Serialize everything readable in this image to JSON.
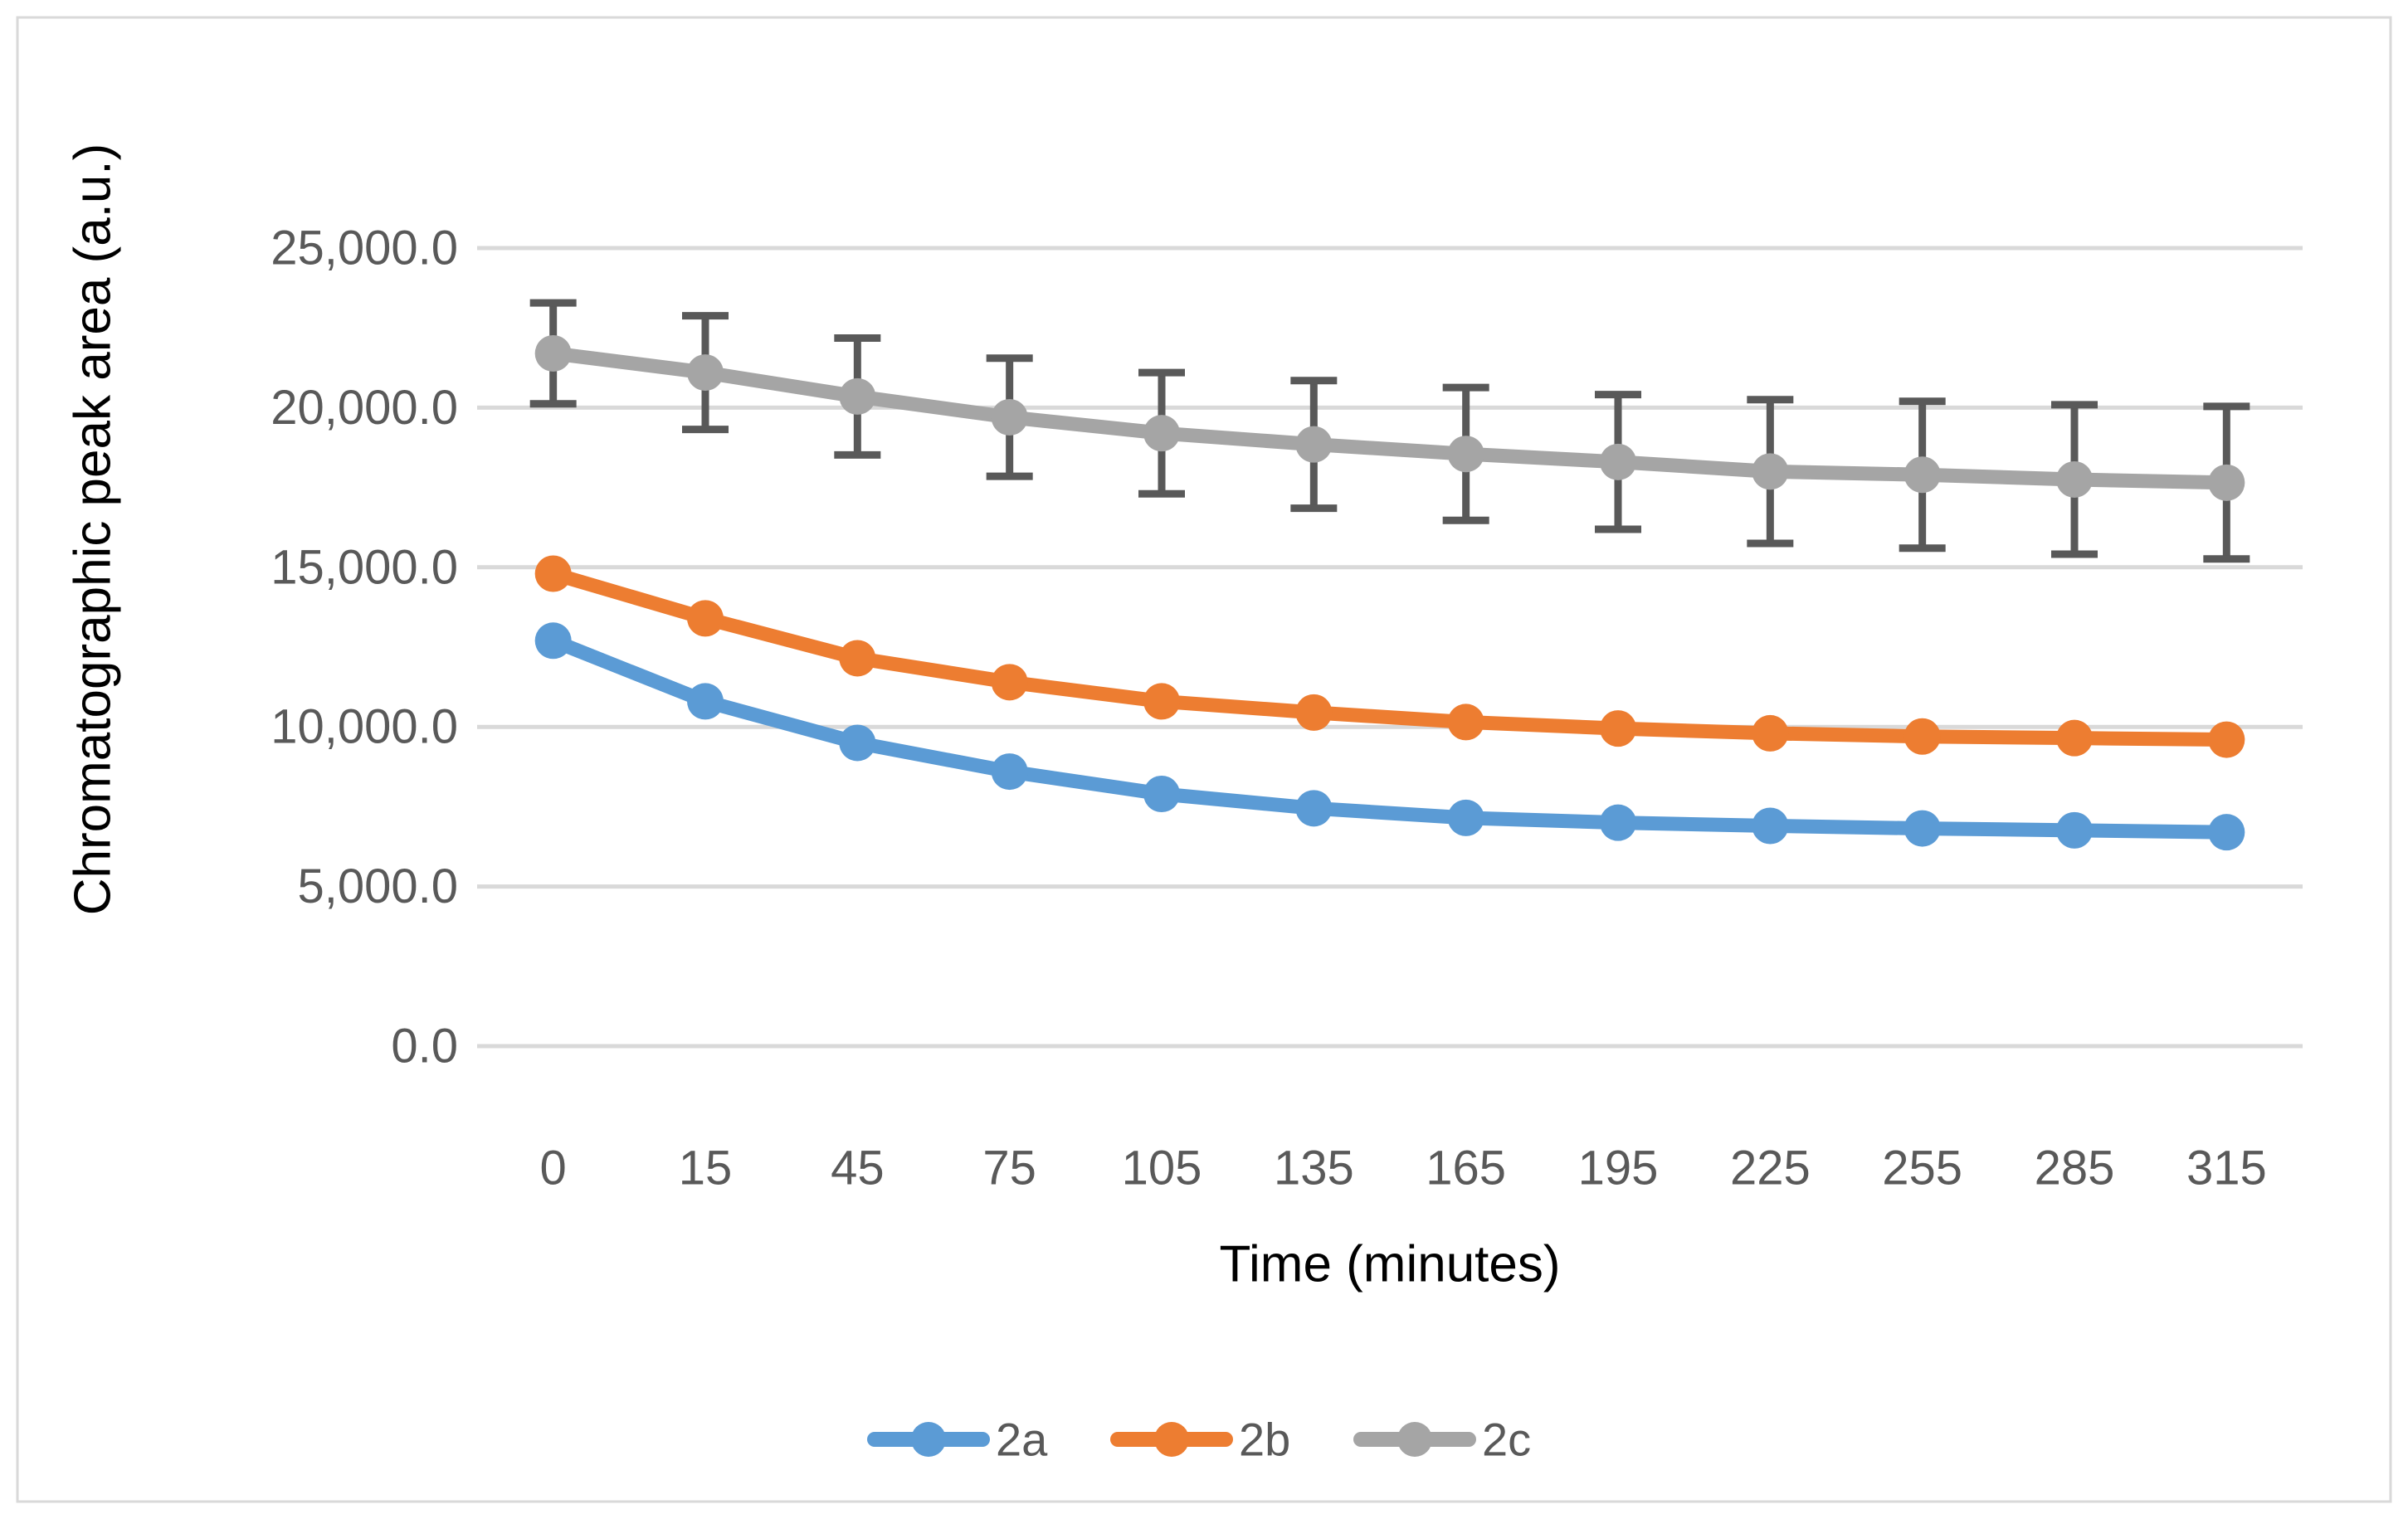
{
  "chart_data": {
    "type": "line",
    "title": "",
    "xlabel": "Time (minutes)",
    "ylabel": "Chromatographic peak area (a.u.)",
    "x_categories": [
      "0",
      "15",
      "45",
      "75",
      "105",
      "135",
      "165",
      "195",
      "225",
      "255",
      "285",
      "315"
    ],
    "y_ticks": [
      "0.0",
      "5,000.0",
      "10,000.0",
      "15,000.0",
      "20,000.0",
      "25,000.0"
    ],
    "y_tick_values": [
      0,
      5000,
      10000,
      15000,
      20000,
      25000
    ],
    "ylim": [
      0,
      28100
    ],
    "grid": "horizontal-only",
    "legend_position": "bottom-center",
    "series": [
      {
        "name": "2a",
        "color": "#5B9BD5",
        "values": [
          12700,
          10800,
          9500,
          8600,
          7900,
          7450,
          7150,
          7000,
          6900,
          6820,
          6760,
          6700
        ]
      },
      {
        "name": "2b",
        "color": "#ED7D31",
        "values": [
          14800,
          13400,
          12150,
          11400,
          10800,
          10450,
          10150,
          9950,
          9800,
          9700,
          9650,
          9600
        ]
      },
      {
        "name": "2c",
        "color": "#A5A5A5",
        "values": [
          21700,
          21100,
          20350,
          19700,
          19200,
          18850,
          18550,
          18300,
          18000,
          17900,
          17750,
          17650
        ],
        "error_plus": [
          1580,
          1780,
          1830,
          1850,
          1900,
          2000,
          2080,
          2110,
          2250,
          2300,
          2340,
          2390
        ],
        "error_minus": [
          1580,
          1780,
          1830,
          1850,
          1900,
          2000,
          2080,
          2110,
          2250,
          2300,
          2340,
          2390
        ]
      }
    ],
    "colors": {
      "gridline": "#D9D9D9",
      "tick_text": "#595959",
      "axis_title_text": "#000000",
      "legend_text": "#595959",
      "error_bar": "#595959",
      "frame_border": "#D9D9D9",
      "background": "#FFFFFF"
    }
  }
}
